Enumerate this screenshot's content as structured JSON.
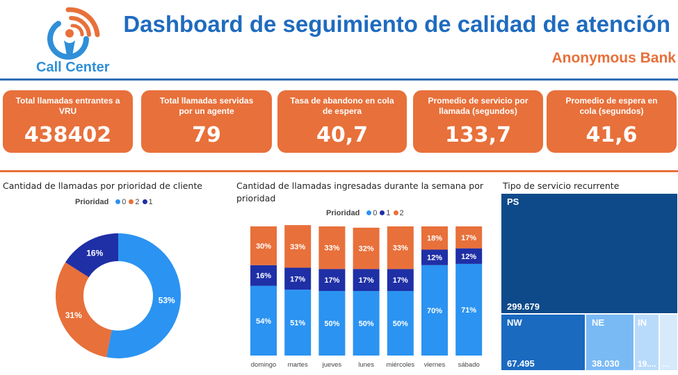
{
  "header": {
    "logo_text": "Call Center",
    "title": "Dashboard de seguimiento de calidad de atención",
    "subtitle": "Anonymous Bank"
  },
  "kpis": [
    {
      "label": "Total llamadas entrantes a VRU",
      "value": "438402"
    },
    {
      "label": "Total llamadas servidas por un agente",
      "value": "79"
    },
    {
      "label": "Tasa de abandono en cola de espera",
      "value": "40,7"
    },
    {
      "label": "Promedio de servicio por llamada (segundos)",
      "value": "133,7"
    },
    {
      "label": "Promedio de espera en cola (segundos)",
      "value": "41,6"
    }
  ],
  "donut": {
    "title": "Cantidad de llamadas por prioridad de cliente",
    "legend_title": "Prioridad",
    "legend": [
      "0",
      "2",
      "1"
    ]
  },
  "weekly": {
    "title": "Cantidad de llamadas ingresadas durante la semana por prioridad",
    "legend_title": "Prioridad",
    "legend": [
      "0",
      "1",
      "2"
    ]
  },
  "treemap": {
    "title": "Tipo de servicio recurrente",
    "cells": [
      {
        "name": "PS",
        "value": "299.679"
      },
      {
        "name": "NW",
        "value": "67.495"
      },
      {
        "name": "NE",
        "value": "38.030"
      },
      {
        "name": "IN",
        "value": "19...."
      },
      {
        "name": "",
        "value": "..."
      }
    ]
  },
  "colors": {
    "orange": "#e8703a",
    "blue_light": "#2b93f1",
    "blue_dark": "#1f2fa6",
    "header_blue": "#1f6bbf",
    "treemap_dark": "#0e4a8a",
    "treemap_mid": "#1a6ac0",
    "treemap_light": "#79baf5",
    "treemap_pale": "#b9dbfb"
  },
  "chart_data": [
    {
      "type": "pie",
      "title": "Cantidad de llamadas por prioridad de cliente",
      "legend_title": "Prioridad",
      "categories": [
        "0",
        "2",
        "1"
      ],
      "values": [
        53,
        31,
        16
      ],
      "labels": [
        "53%",
        "31%",
        "16%"
      ],
      "colors": [
        "#2b93f1",
        "#e8703a",
        "#1f2fa6"
      ],
      "donut": true
    },
    {
      "type": "bar",
      "stacked": "100%",
      "title": "Cantidad de llamadas ingresadas durante la semana por prioridad",
      "legend_title": "Prioridad",
      "categories": [
        "domingo",
        "martes",
        "jueves",
        "lunes",
        "miércoles",
        "viernes",
        "sábado"
      ],
      "series": [
        {
          "name": "0",
          "color": "#2b93f1",
          "values": [
            54,
            51,
            50,
            50,
            50,
            70,
            71
          ],
          "labels": [
            "54%",
            "51%",
            "50%",
            "50%",
            "50%",
            "70%",
            "71%"
          ]
        },
        {
          "name": "1",
          "color": "#1f2fa6",
          "values": [
            16,
            17,
            17,
            17,
            17,
            12,
            12
          ],
          "labels": [
            "16%",
            "17%",
            "17%",
            "17%",
            "17%",
            "12%",
            "12%"
          ]
        },
        {
          "name": "2",
          "color": "#e8703a",
          "values": [
            30,
            33,
            33,
            32,
            33,
            18,
            17
          ],
          "labels": [
            "30%",
            "33%",
            "33%",
            "32%",
            "33%",
            "18%",
            "17%"
          ]
        }
      ]
    }
  ]
}
